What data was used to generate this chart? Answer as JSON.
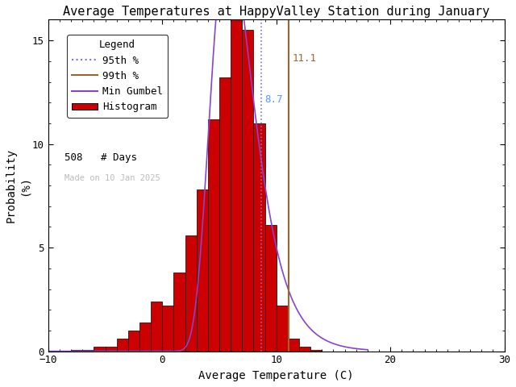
{
  "title": "Average Temperatures at HappyValley Station during January",
  "xlabel": "Average Temperature (C)",
  "ylabel": "Probability\n(%)",
  "xlim": [
    -10,
    30
  ],
  "ylim": [
    0,
    16
  ],
  "yticks": [
    0,
    5,
    10,
    15
  ],
  "xticks": [
    -10,
    0,
    10,
    20,
    30
  ],
  "bin_edges": [
    -9,
    -8,
    -7,
    -6,
    -5,
    -4,
    -3,
    -2,
    -1,
    0,
    1,
    2,
    3,
    4,
    5,
    6,
    7,
    8,
    9,
    10,
    11,
    12,
    13,
    14
  ],
  "bin_heights": [
    0.04,
    0.08,
    0.08,
    0.2,
    0.2,
    0.6,
    1.0,
    1.4,
    2.4,
    2.2,
    3.8,
    5.6,
    7.8,
    11.2,
    13.2,
    16.1,
    15.5,
    11.0,
    6.1,
    2.2,
    0.6,
    0.2,
    0.08
  ],
  "bar_color": "#cc0000",
  "bar_edgecolor": "#000000",
  "line_95_x": 8.7,
  "line_95_color": "#7777cc",
  "line_99_x": 11.1,
  "line_99_color": "#996633",
  "label_95": "8.7",
  "label_99": "11.1",
  "label_95_color": "#5599ff",
  "label_99_color": "#996633",
  "gumbel_mu": 5.8,
  "gumbel_beta": 1.85,
  "gumbel_color": "#8844cc",
  "n_days": 508,
  "watermark": "Made on 10 Jan 2025",
  "watermark_color": "#bbbbbb",
  "background_color": "#ffffff",
  "title_fontsize": 11,
  "axis_fontsize": 10,
  "tick_fontsize": 9,
  "legend_fontsize": 9
}
